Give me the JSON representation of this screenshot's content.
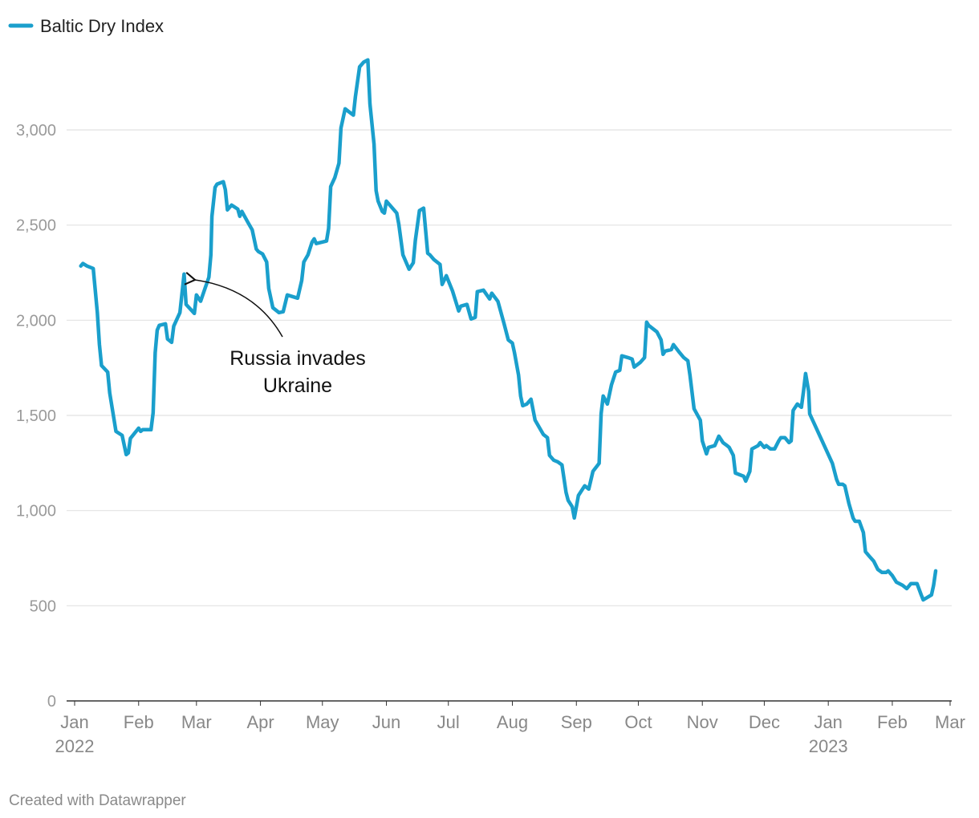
{
  "chart_data": {
    "type": "line",
    "title": "",
    "xlabel": "",
    "ylabel": "",
    "x_unit": "days since 2022-01-01",
    "ylim": [
      0,
      3400
    ],
    "xlim": [
      0,
      424
    ],
    "grid": true,
    "legend": {
      "position": "top-left",
      "entries": [
        "Baltic Dry Index"
      ]
    },
    "color": "#1a9fcc",
    "y_ticks": [
      {
        "value": 0,
        "label": "0"
      },
      {
        "value": 500,
        "label": "500"
      },
      {
        "value": 1000,
        "label": "1,000"
      },
      {
        "value": 1500,
        "label": "1,500"
      },
      {
        "value": 2000,
        "label": "2,000"
      },
      {
        "value": 2500,
        "label": "2,500"
      },
      {
        "value": 3000,
        "label": "3,000"
      }
    ],
    "x_ticks": [
      {
        "day": 0,
        "label": "Jan",
        "year": "2022"
      },
      {
        "day": 31,
        "label": "Feb"
      },
      {
        "day": 59,
        "label": "Mar"
      },
      {
        "day": 90,
        "label": "Apr"
      },
      {
        "day": 120,
        "label": "May"
      },
      {
        "day": 151,
        "label": "Jun"
      },
      {
        "day": 181,
        "label": "Jul"
      },
      {
        "day": 212,
        "label": "Aug"
      },
      {
        "day": 243,
        "label": "Sep"
      },
      {
        "day": 273,
        "label": "Oct"
      },
      {
        "day": 304,
        "label": "Nov"
      },
      {
        "day": 334,
        "label": "Dec"
      },
      {
        "day": 365,
        "label": "Jan",
        "year": "2023"
      },
      {
        "day": 396,
        "label": "Feb"
      },
      {
        "day": 424,
        "label": "Mar"
      }
    ],
    "series": [
      {
        "name": "Baltic Dry Index",
        "points": [
          [
            3,
            2285
          ],
          [
            4,
            2298
          ],
          [
            6,
            2285
          ],
          [
            9,
            2272
          ],
          [
            11,
            2040
          ],
          [
            12,
            1872
          ],
          [
            13,
            1762
          ],
          [
            16,
            1728
          ],
          [
            17,
            1619
          ],
          [
            19,
            1484
          ],
          [
            20,
            1416
          ],
          [
            23,
            1395
          ],
          [
            25,
            1294
          ],
          [
            26,
            1303
          ],
          [
            27,
            1379
          ],
          [
            31,
            1433
          ],
          [
            32,
            1416
          ],
          [
            33,
            1425
          ],
          [
            37,
            1425
          ],
          [
            38,
            1513
          ],
          [
            39,
            1830
          ],
          [
            40,
            1948
          ],
          [
            41,
            1973
          ],
          [
            44,
            1981
          ],
          [
            45,
            1901
          ],
          [
            47,
            1884
          ],
          [
            48,
            1969
          ],
          [
            51,
            2040
          ],
          [
            53,
            2243
          ],
          [
            54,
            2083
          ],
          [
            58,
            2036
          ],
          [
            59,
            2133
          ],
          [
            61,
            2100
          ],
          [
            65,
            2226
          ],
          [
            66,
            2344
          ],
          [
            66.5,
            2546
          ],
          [
            68,
            2698
          ],
          [
            69,
            2715
          ],
          [
            72,
            2728
          ],
          [
            73,
            2686
          ],
          [
            74,
            2580
          ],
          [
            76,
            2605
          ],
          [
            79,
            2584
          ],
          [
            80,
            2546
          ],
          [
            81,
            2572
          ],
          [
            84,
            2513
          ],
          [
            86,
            2475
          ],
          [
            88,
            2374
          ],
          [
            89,
            2361
          ],
          [
            91,
            2348
          ],
          [
            93,
            2306
          ],
          [
            94,
            2167
          ],
          [
            96,
            2066
          ],
          [
            99,
            2040
          ],
          [
            101,
            2045
          ],
          [
            103,
            2133
          ],
          [
            108,
            2116
          ],
          [
            110,
            2209
          ],
          [
            111,
            2306
          ],
          [
            113,
            2344
          ],
          [
            115,
            2411
          ],
          [
            116,
            2428
          ],
          [
            117,
            2403
          ],
          [
            122,
            2416
          ],
          [
            123,
            2483
          ],
          [
            124,
            2702
          ],
          [
            126,
            2749
          ],
          [
            128,
            2825
          ],
          [
            129,
            3010
          ],
          [
            131,
            3111
          ],
          [
            133,
            3094
          ],
          [
            135,
            3078
          ],
          [
            136,
            3175
          ],
          [
            138,
            3331
          ],
          [
            140,
            3356
          ],
          [
            142,
            3368
          ],
          [
            143,
            3137
          ],
          [
            145,
            2926
          ],
          [
            146,
            2681
          ],
          [
            147,
            2626
          ],
          [
            149,
            2572
          ],
          [
            150,
            2563
          ],
          [
            151,
            2626
          ],
          [
            156,
            2563
          ],
          [
            157,
            2504
          ],
          [
            159,
            2344
          ],
          [
            162,
            2268
          ],
          [
            164,
            2302
          ],
          [
            165,
            2420
          ],
          [
            167,
            2576
          ],
          [
            169,
            2589
          ],
          [
            171,
            2352
          ],
          [
            172,
            2344
          ],
          [
            174,
            2319
          ],
          [
            177,
            2293
          ],
          [
            178,
            2188
          ],
          [
            180,
            2234
          ],
          [
            183,
            2154
          ],
          [
            186,
            2049
          ],
          [
            187,
            2074
          ],
          [
            190,
            2083
          ],
          [
            192,
            2007
          ],
          [
            194,
            2015
          ],
          [
            195,
            2150
          ],
          [
            198,
            2158
          ],
          [
            201,
            2112
          ],
          [
            202,
            2142
          ],
          [
            205,
            2099
          ],
          [
            208,
            1981
          ],
          [
            210,
            1897
          ],
          [
            212,
            1880
          ],
          [
            213,
            1830
          ],
          [
            215,
            1712
          ],
          [
            216,
            1602
          ],
          [
            217,
            1551
          ],
          [
            219,
            1560
          ],
          [
            221,
            1585
          ],
          [
            223,
            1475
          ],
          [
            227,
            1400
          ],
          [
            229,
            1383
          ],
          [
            230,
            1290
          ],
          [
            232,
            1265
          ],
          [
            234,
            1256
          ],
          [
            236,
            1240
          ],
          [
            238,
            1096
          ],
          [
            239,
            1054
          ],
          [
            241,
            1020
          ],
          [
            242,
            961
          ],
          [
            244,
            1079
          ],
          [
            247,
            1130
          ],
          [
            249,
            1113
          ],
          [
            251,
            1206
          ],
          [
            254,
            1248
          ],
          [
            255,
            1509
          ],
          [
            256,
            1602
          ],
          [
            258,
            1560
          ],
          [
            260,
            1661
          ],
          [
            262,
            1728
          ],
          [
            264,
            1737
          ],
          [
            265,
            1813
          ],
          [
            268,
            1804
          ],
          [
            270,
            1796
          ],
          [
            271,
            1754
          ],
          [
            274,
            1779
          ],
          [
            276,
            1804
          ],
          [
            277,
            1990
          ],
          [
            278,
            1973
          ],
          [
            280,
            1956
          ],
          [
            282,
            1939
          ],
          [
            284,
            1897
          ],
          [
            285,
            1821
          ],
          [
            286,
            1838
          ],
          [
            289,
            1846
          ],
          [
            290,
            1872
          ],
          [
            293,
            1830
          ],
          [
            295,
            1804
          ],
          [
            297,
            1787
          ],
          [
            298,
            1712
          ],
          [
            300,
            1535
          ],
          [
            303,
            1475
          ],
          [
            304,
            1366
          ],
          [
            306,
            1298
          ],
          [
            307,
            1332
          ],
          [
            310,
            1341
          ],
          [
            312,
            1391
          ],
          [
            314,
            1357
          ],
          [
            316,
            1341
          ],
          [
            317,
            1332
          ],
          [
            319,
            1290
          ],
          [
            320,
            1197
          ],
          [
            324,
            1180
          ],
          [
            325,
            1155
          ],
          [
            327,
            1206
          ],
          [
            328,
            1324
          ],
          [
            331,
            1341
          ],
          [
            332,
            1357
          ],
          [
            334,
            1332
          ],
          [
            335,
            1341
          ],
          [
            337,
            1324
          ],
          [
            339,
            1324
          ],
          [
            341,
            1366
          ],
          [
            342,
            1383
          ],
          [
            344,
            1383
          ],
          [
            346,
            1357
          ],
          [
            347,
            1366
          ],
          [
            348,
            1526
          ],
          [
            350,
            1560
          ],
          [
            352,
            1543
          ],
          [
            353,
            1627
          ],
          [
            354,
            1720
          ],
          [
            355.5,
            1627
          ],
          [
            356,
            1509
          ],
          [
            367,
            1248
          ],
          [
            369,
            1164
          ],
          [
            370,
            1138
          ],
          [
            372,
            1138
          ],
          [
            373,
            1130
          ],
          [
            375,
            1037
          ],
          [
            377,
            961
          ],
          [
            378,
            944
          ],
          [
            380,
            944
          ],
          [
            382,
            885
          ],
          [
            383,
            784
          ],
          [
            385,
            759
          ],
          [
            387,
            734
          ],
          [
            389,
            691
          ],
          [
            391,
            675
          ],
          [
            393,
            675
          ],
          [
            394,
            683
          ],
          [
            396,
            658
          ],
          [
            398,
            624
          ],
          [
            401,
            607
          ],
          [
            403,
            590
          ],
          [
            405,
            616
          ],
          [
            408,
            616
          ],
          [
            410,
            557
          ],
          [
            411,
            531
          ],
          [
            415,
            557
          ],
          [
            416,
            607
          ],
          [
            417,
            683
          ]
        ]
      }
    ],
    "annotations": [
      {
        "text_lines": [
          "Russia invades",
          "Ukraine"
        ],
        "target_day": 54,
        "target_value": 2210
      }
    ]
  },
  "footer": "Created with Datawrapper"
}
